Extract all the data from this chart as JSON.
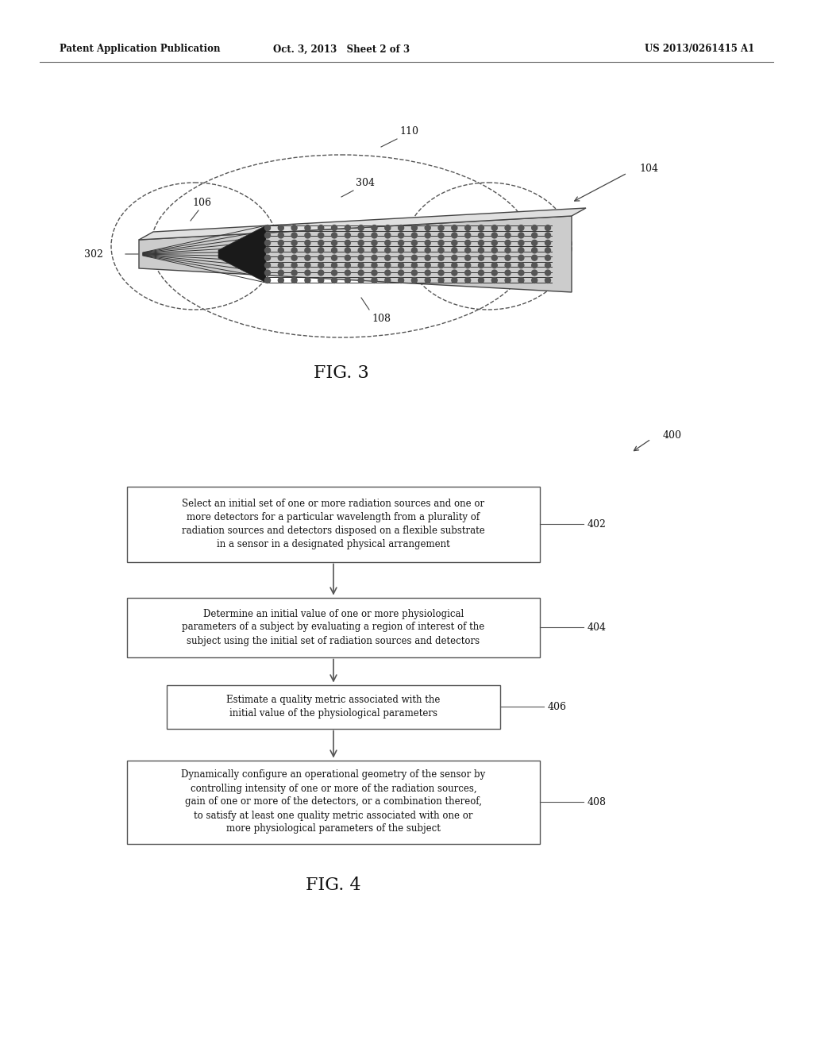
{
  "page_header": {
    "left": "Patent Application Publication",
    "center": "Oct. 3, 2013   Sheet 2 of 3",
    "right": "US 2013/0261415 A1"
  },
  "fig3_label": "FIG. 3",
  "fig4_label": "FIG. 4",
  "box402_text": "Select an initial set of one or more radiation sources and one or\nmore detectors for a particular wavelength from a plurality of\nradiation sources and detectors disposed on a flexible substrate\nin a sensor in a designated physical arrangement",
  "box404_text": "Determine an initial value of one or more physiological\nparameters of a subject by evaluating a region of interest of the\nsubject using the initial set of radiation sources and detectors",
  "box406_text": "Estimate a quality metric associated with the\ninitial value of the physiological parameters",
  "box408_text": "Dynamically configure an operational geometry of the sensor by\ncontrolling intensity of one or more of the radiation sources,\ngain of one or more of the detectors, or a combination thereof,\nto satisfy at least one quality metric associated with one or\nmore physiological parameters of the subject",
  "background_color": "#ffffff",
  "text_color": "#111111",
  "line_color": "#444444"
}
